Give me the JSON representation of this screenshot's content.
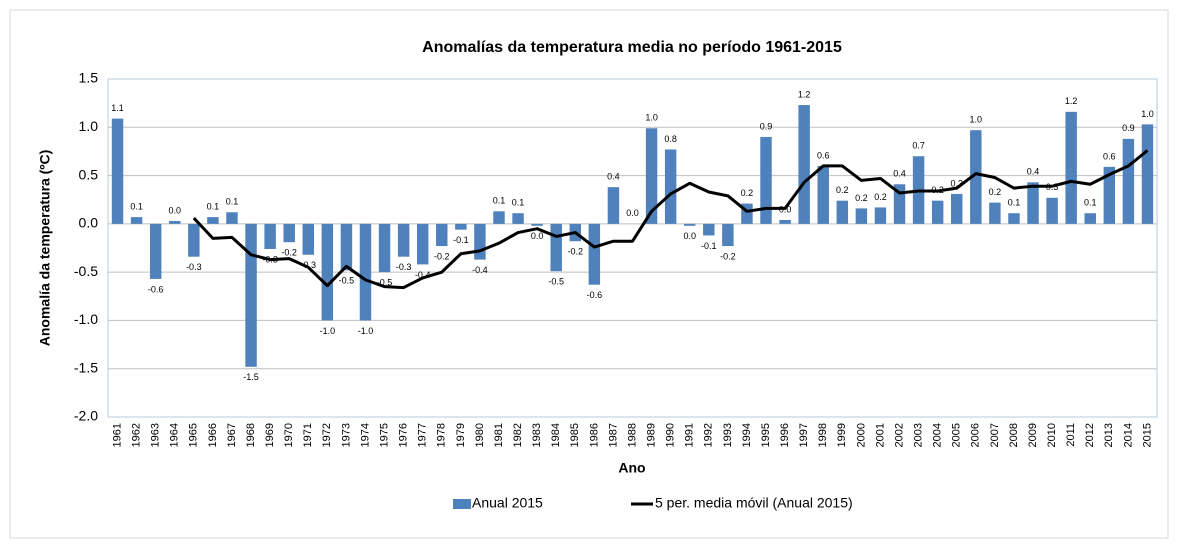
{
  "chart_data": {
    "type": "bar",
    "title": "Anomalías da temperatura media no período 1961-2015",
    "x_label": "Ano",
    "y_label": "Anomalía da temperatura (ºC)",
    "categories": [
      "1961",
      "1962",
      "1963",
      "1964",
      "1965",
      "1966",
      "1967",
      "1968",
      "1969",
      "1970",
      "1971",
      "1972",
      "1973",
      "1974",
      "1975",
      "1976",
      "1977",
      "1978",
      "1979",
      "1980",
      "1981",
      "1982",
      "1983",
      "1984",
      "1985",
      "1986",
      "1987",
      "1988",
      "1989",
      "1990",
      "1991",
      "1992",
      "1993",
      "1994",
      "1995",
      "1996",
      "1997",
      "1998",
      "1999",
      "2000",
      "2001",
      "2002",
      "2003",
      "2004",
      "2005",
      "2006",
      "2007",
      "2008",
      "2009",
      "2010",
      "2011",
      "2012",
      "2013",
      "2014",
      "2015"
    ],
    "series": [
      {
        "name": "Anual 2015",
        "type": "bar",
        "color": "#4f81bd",
        "values": [
          1.09,
          0.07,
          -0.57,
          0.03,
          -0.34,
          0.07,
          0.12,
          -1.48,
          -0.26,
          -0.19,
          -0.32,
          -1.0,
          -0.48,
          -1.0,
          -0.5,
          -0.34,
          -0.42,
          -0.23,
          -0.06,
          -0.37,
          0.13,
          0.11,
          -0.02,
          -0.49,
          -0.18,
          -0.63,
          0.38,
          0.0,
          0.99,
          0.77,
          -0.02,
          -0.12,
          -0.23,
          0.21,
          0.9,
          0.04,
          1.23,
          0.6,
          0.24,
          0.16,
          0.17,
          0.41,
          0.7,
          0.24,
          0.31,
          0.97,
          0.22,
          0.11,
          0.43,
          0.27,
          1.16,
          0.11,
          0.59,
          0.88,
          1.03
        ],
        "value_labels": [
          "1.1",
          "0.1",
          "-0.6",
          "0.0",
          "-0.3",
          "0.1",
          "0.1",
          "-1.5",
          "-0.3",
          "-0.2",
          "-0.3",
          "-1.0",
          "-0.5",
          "-1.0",
          "-0.5",
          "-0.3",
          "-0.4",
          "-0.2",
          "-0.1",
          "-0.4",
          "0.1",
          "0.1",
          "0.0",
          "-0.5",
          "-0.2",
          "-0.6",
          "0.4",
          "0.0",
          "1.0",
          "0.8",
          "0.0",
          "-0.1",
          "-0.2",
          "0.2",
          "0.9",
          "0.0",
          "1.2",
          "0.6",
          "0.2",
          "0.2",
          "0.2",
          "0.4",
          "0.7",
          "0.2",
          "0.3",
          "1.0",
          "0.2",
          "0.1",
          "0.4",
          "0.3",
          "1.2",
          "0.1",
          "0.6",
          "0.9",
          "1.0"
        ]
      },
      {
        "name": "5 per. media móvil (Anual 2015)",
        "type": "line",
        "color": "#000000",
        "values": [
          null,
          null,
          null,
          null,
          0.06,
          -0.15,
          -0.14,
          -0.32,
          -0.37,
          -0.36,
          -0.45,
          -0.64,
          -0.44,
          -0.58,
          -0.65,
          -0.66,
          -0.56,
          -0.5,
          -0.31,
          -0.28,
          -0.2,
          -0.09,
          -0.05,
          -0.13,
          -0.09,
          -0.24,
          -0.18,
          -0.18,
          0.13,
          0.31,
          0.42,
          0.33,
          0.29,
          0.13,
          0.16,
          0.16,
          0.43,
          0.6,
          0.6,
          0.45,
          0.47,
          0.32,
          0.34,
          0.34,
          0.37,
          0.52,
          0.48,
          0.37,
          0.39,
          0.39,
          0.44,
          0.41,
          0.51,
          0.6,
          0.76
        ]
      }
    ],
    "ylim": [
      -2,
      1.5
    ],
    "yticks": [
      {
        "value": -2,
        "label": "-2.0"
      },
      -1.5,
      {
        "value": -1,
        "label": "-1.0"
      },
      -0.5,
      {
        "value": 0,
        "label": "0.0"
      },
      0.5,
      {
        "value": 1,
        "label": "1.0"
      },
      1.5
    ],
    "grid": true,
    "legend": "bottom"
  }
}
